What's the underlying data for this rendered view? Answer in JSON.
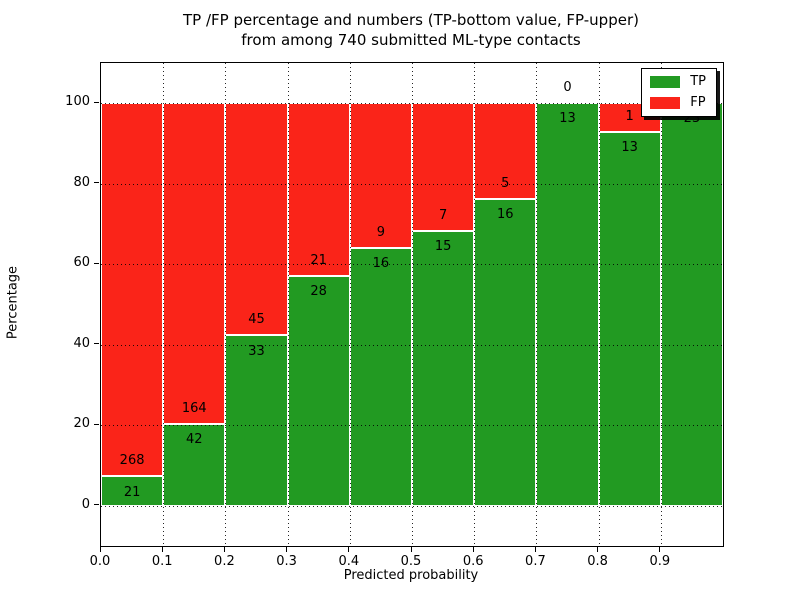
{
  "figure": {
    "background": "#ffffff"
  },
  "chart_data": {
    "type": "bar",
    "stacked_percentage": true,
    "title_line1": "TP /FP percentage and numbers (TP-bottom value, FP-upper)",
    "title_line2": "from among 740 submitted ML-type contacts",
    "xlabel": "Predicted probability",
    "ylabel": "Percentage",
    "total_contacts": 740,
    "xlim": [
      0.0,
      1.0
    ],
    "ylim": [
      -10,
      110
    ],
    "x_tick_labels": [
      "0.0",
      "0.1",
      "0.2",
      "0.3",
      "0.4",
      "0.5",
      "0.6",
      "0.7",
      "0.8",
      "0.9"
    ],
    "y_ticks": [
      0,
      20,
      40,
      60,
      80,
      100
    ],
    "y_tick_labels": [
      "0",
      "20",
      "40",
      "60",
      "80",
      "100"
    ],
    "grid_style": "dotted",
    "bar_edge_color": "#ffffff",
    "colors": {
      "tp": "#229a22",
      "fp": "#fa2419"
    },
    "legend": {
      "position": "upper right"
    },
    "series": [
      {
        "name": "TP",
        "color": "#229a22",
        "values": [
          21,
          42,
          33,
          28,
          16,
          15,
          16,
          13,
          13,
          23
        ]
      },
      {
        "name": "FP",
        "color": "#fa2419",
        "values": [
          268,
          164,
          45,
          21,
          9,
          7,
          5,
          0,
          1,
          0
        ]
      }
    ],
    "bins": [
      {
        "x_start": 0.0,
        "x_end": 0.1,
        "tp": 21,
        "fp": 268,
        "tp_pct": 7.27
      },
      {
        "x_start": 0.1,
        "x_end": 0.2,
        "tp": 42,
        "fp": 164,
        "tp_pct": 20.39
      },
      {
        "x_start": 0.2,
        "x_end": 0.3,
        "tp": 33,
        "fp": 45,
        "tp_pct": 42.31
      },
      {
        "x_start": 0.3,
        "x_end": 0.4,
        "tp": 28,
        "fp": 21,
        "tp_pct": 57.14
      },
      {
        "x_start": 0.4,
        "x_end": 0.5,
        "tp": 16,
        "fp": 9,
        "tp_pct": 64.0
      },
      {
        "x_start": 0.5,
        "x_end": 0.6,
        "tp": 15,
        "fp": 7,
        "tp_pct": 68.18
      },
      {
        "x_start": 0.6,
        "x_end": 0.7,
        "tp": 16,
        "fp": 5,
        "tp_pct": 76.19
      },
      {
        "x_start": 0.7,
        "x_end": 0.8,
        "tp": 13,
        "fp": 0,
        "tp_pct": 100.0
      },
      {
        "x_start": 0.8,
        "x_end": 0.9,
        "tp": 13,
        "fp": 1,
        "tp_pct": 92.86
      },
      {
        "x_start": 0.9,
        "x_end": 1.0,
        "tp": 23,
        "fp": 0,
        "tp_pct": 100.0
      }
    ]
  }
}
